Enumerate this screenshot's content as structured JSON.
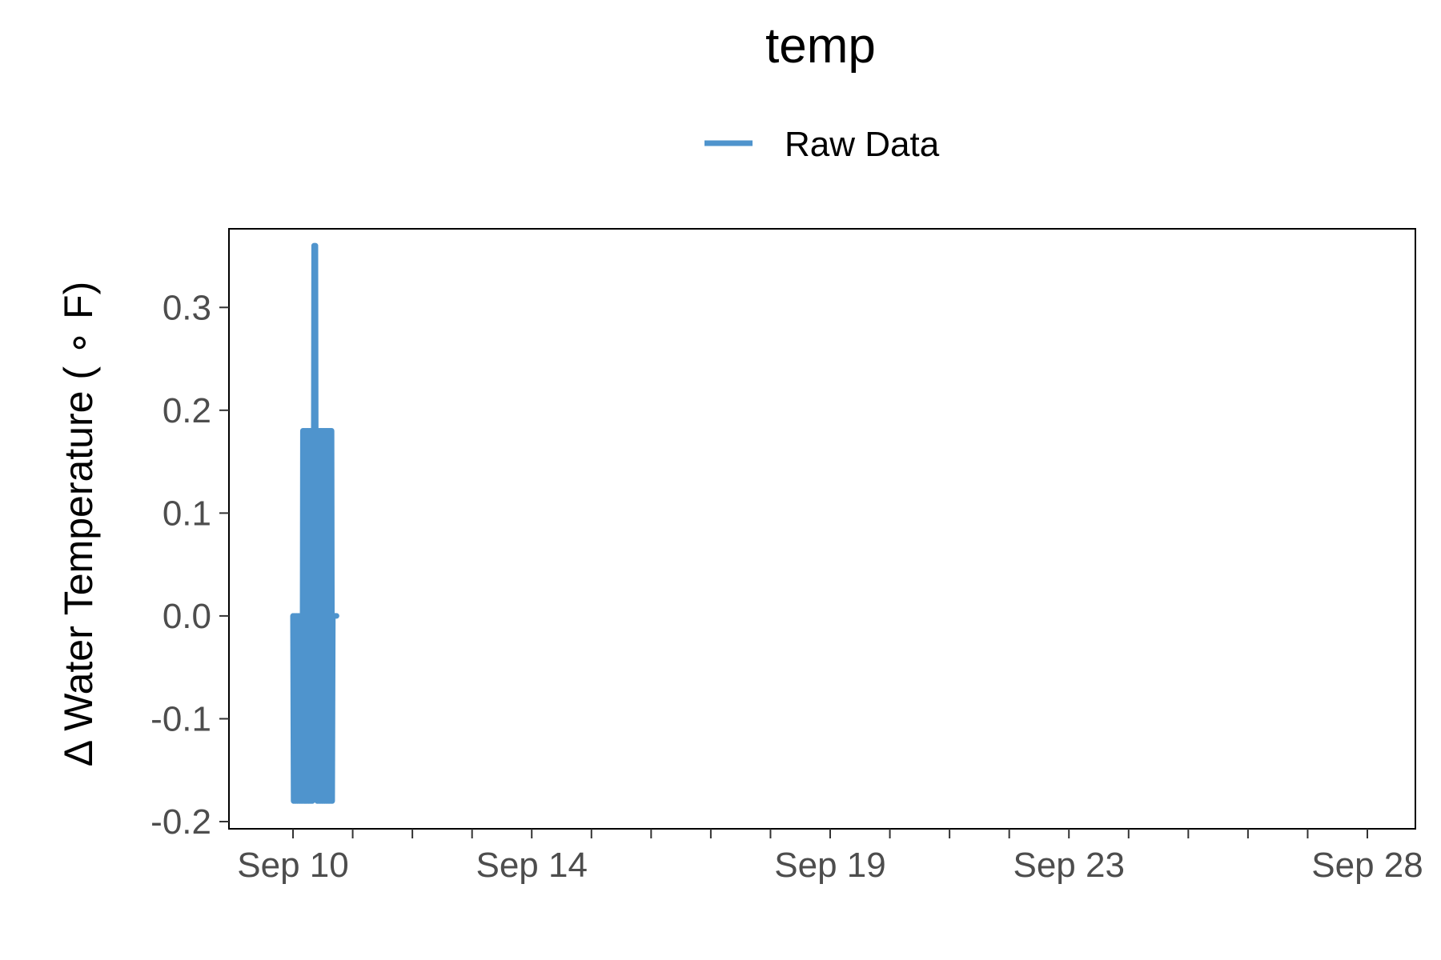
{
  "chart_data": {
    "type": "line",
    "title": "temp",
    "xlabel": "",
    "ylabel": "Δ Water Temperature ( ∘ F)",
    "legend": {
      "placement": "top",
      "entries": [
        {
          "name": "Raw Data",
          "color": "#4f94cd"
        }
      ]
    },
    "x_axis": {
      "kind": "date",
      "range": [
        "2024-09-10T00:00",
        "2024-09-28T00:00"
      ],
      "tick_labels": [
        {
          "label": "Sep 10",
          "date": "2024-09-10"
        },
        {
          "label": "Sep 14",
          "date": "2024-09-14"
        },
        {
          "label": "Sep 19",
          "date": "2024-09-19"
        },
        {
          "label": "Sep 23",
          "date": "2024-09-23"
        },
        {
          "label": "Sep 28",
          "date": "2024-09-28"
        }
      ]
    },
    "y_axis": {
      "range": [
        -0.2,
        0.35
      ],
      "ticks": [
        -0.2,
        -0.1,
        0.0,
        0.1,
        0.2,
        0.3
      ]
    },
    "grid": false,
    "series": [
      {
        "name": "Raw Data",
        "color": "#4f94cd",
        "x": [
          "2024-09-10T00:00",
          "2024-09-10T00:15",
          "2024-09-10T00:30",
          "2024-09-10T00:45",
          "2024-09-10T01:00",
          "2024-09-10T01:15",
          "2024-09-10T01:30",
          "2024-09-10T01:45",
          "2024-09-10T02:00",
          "2024-09-10T02:15",
          "2024-09-10T02:30",
          "2024-09-10T02:45",
          "2024-09-10T03:00",
          "2024-09-10T03:15",
          "2024-09-10T03:30",
          "2024-09-10T03:45",
          "2024-09-10T04:00",
          "2024-09-10T04:15",
          "2024-09-10T04:30",
          "2024-09-10T04:45",
          "2024-09-10T05:00",
          "2024-09-10T05:15",
          "2024-09-10T05:30",
          "2024-09-10T05:45",
          "2024-09-10T06:00",
          "2024-09-10T06:15",
          "2024-09-10T06:30",
          "2024-09-10T06:45",
          "2024-09-10T07:00",
          "2024-09-10T07:15",
          "2024-09-10T07:30",
          "2024-09-10T07:45",
          "2024-09-10T08:00",
          "2024-09-10T08:15",
          "2024-09-10T08:30",
          "2024-09-10T08:45",
          "2024-09-10T09:00",
          "2024-09-10T09:15",
          "2024-09-10T09:30",
          "2024-09-10T09:45",
          "2024-09-10T10:00",
          "2024-09-10T10:15",
          "2024-09-10T10:30",
          "2024-09-10T10:45",
          "2024-09-10T11:00",
          "2024-09-10T11:15",
          "2024-09-10T11:30",
          "2024-09-10T11:45",
          "2024-09-10T12:00",
          "2024-09-10T12:15",
          "2024-09-10T12:30",
          "2024-09-10T12:45",
          "2024-09-10T13:00",
          "2024-09-10T13:15",
          "2024-09-10T13:30",
          "2024-09-10T13:45",
          "2024-09-10T14:00",
          "2024-09-10T14:15",
          "2024-09-10T14:30",
          "2024-09-10T14:45",
          "2024-09-10T15:00",
          "2024-09-10T15:15",
          "2024-09-10T15:30",
          "2024-09-10T15:45",
          "2024-09-10T16:00",
          "2024-09-10T16:15",
          "2024-09-10T16:30",
          "2024-09-10T16:45",
          "2024-09-10T17:00",
          "2024-09-10T17:15",
          "2024-09-10T17:30"
        ],
        "y": [
          0.0,
          -0.18,
          0.0,
          -0.18,
          0.0,
          -0.18,
          0.0,
          -0.18,
          0.0,
          -0.18,
          0.0,
          -0.18,
          0.0,
          -0.18,
          0.0,
          -0.18,
          0.18,
          -0.18,
          0.18,
          -0.18,
          0.18,
          -0.18,
          0.18,
          -0.18,
          0.18,
          -0.18,
          0.18,
          -0.18,
          0.18,
          -0.18,
          0.18,
          -0.18,
          0.18,
          0.0,
          0.36,
          0.0,
          0.36,
          0.0,
          0.18,
          -0.18,
          0.18,
          -0.18,
          0.18,
          -0.18,
          0.18,
          -0.18,
          0.18,
          -0.18,
          0.18,
          -0.18,
          0.18,
          -0.18,
          0.18,
          -0.18,
          0.18,
          -0.18,
          0.18,
          -0.18,
          0.18,
          -0.18,
          0.18,
          -0.18,
          0.18,
          -0.18,
          0.0,
          0.0,
          0.0,
          0.0,
          0.0,
          0.0,
          0.0
        ]
      }
    ]
  }
}
